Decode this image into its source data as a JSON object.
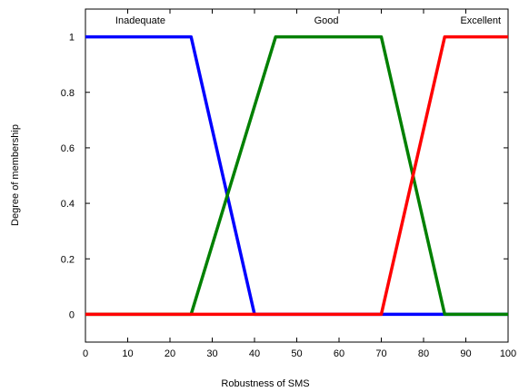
{
  "chart_data": {
    "type": "line",
    "title": "",
    "xlabel": "Robustness of  SMS",
    "ylabel": "Degree of membership",
    "xlim": [
      0,
      100
    ],
    "ylim": [
      -0.1,
      1.1
    ],
    "xticks": [
      0,
      10,
      20,
      30,
      40,
      50,
      60,
      70,
      80,
      90,
      100
    ],
    "yticks": [
      0,
      0.2,
      0.4,
      0.6,
      0.8,
      1
    ],
    "ytick_labels": [
      "0",
      "0.2",
      "0.4",
      "0.6",
      "0.8",
      "1"
    ],
    "grid": false,
    "legend": "none",
    "series": [
      {
        "name": "Inadequate",
        "color": "#0000ff",
        "x": [
          0,
          25,
          40,
          100
        ],
        "y": [
          1,
          1,
          0,
          0
        ]
      },
      {
        "name": "Good",
        "color": "#008000",
        "x": [
          0,
          25,
          45,
          70,
          85,
          100
        ],
        "y": [
          0,
          0,
          1,
          1,
          0,
          0
        ]
      },
      {
        "name": "Excellent",
        "color": "#ff0000",
        "x": [
          0,
          70,
          85,
          100
        ],
        "y": [
          0,
          0,
          1,
          1
        ]
      }
    ],
    "annotations": [
      {
        "text": "Inadequate",
        "x": 13,
        "y": 1.06
      },
      {
        "text": "Good",
        "x": 57,
        "y": 1.06
      },
      {
        "text": "Excellent",
        "x": 93.5,
        "y": 1.06
      }
    ]
  }
}
